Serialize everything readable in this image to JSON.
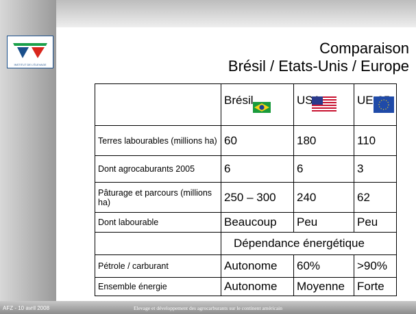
{
  "header": {
    "logo_text": "INSTITUT DE L'ÉLEVAGE",
    "title": "Comparaison",
    "subtitle": "Brésil / Etats-Unis / Europe"
  },
  "table": {
    "columns": [
      "Brésil",
      "USA",
      "UE-25"
    ],
    "rows": [
      [
        "Terres labourables (millions ha)",
        "60",
        "180",
        "110"
      ],
      [
        "Dont agrocaburants 2005",
        "6",
        "6",
        "3"
      ],
      [
        "Pâturage et parcours (millions ha)",
        "250 – 300",
        "240",
        "62"
      ],
      [
        "Dont labourable",
        "Beaucoup",
        "Peu",
        "Peu"
      ]
    ],
    "section_label": "Dépendance énergétique",
    "rows_after": [
      [
        "Pétrole / carburant",
        "Autonome",
        "60%",
        ">90%"
      ],
      [
        "Ensemble énergie",
        "Autonome",
        "Moyenne",
        "Forte"
      ]
    ]
  },
  "footer": {
    "left": "AFZ - 10 avril 2008",
    "center": "Elevage et développement des agrocarburants sur le continent américain"
  }
}
